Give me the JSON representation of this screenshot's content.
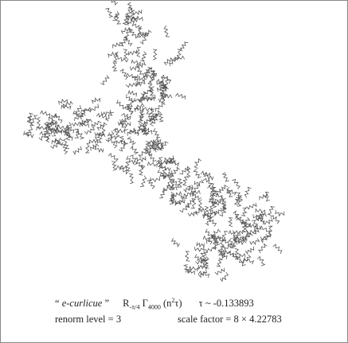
{
  "caption": {
    "quote_open": "“",
    "name": "e-curlicue",
    "quote_close": "”",
    "rot": "R",
    "rot_sub": "-π/4",
    "gamma": "Γ",
    "gamma_sub": "4000",
    "arg_open": "(n",
    "arg_sup": "2",
    "arg_close": "τ)",
    "tau": "τ ~ -0.133893",
    "renorm": "renorm level = 3",
    "scale": "scale factor = 8 × 4.22783"
  }
}
